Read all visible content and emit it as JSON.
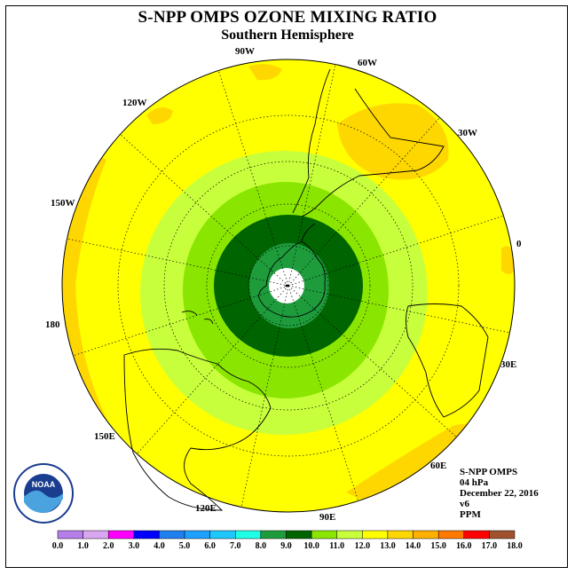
{
  "title": "S-NPP OMPS OZONE MIXING RATIO",
  "subtitle": "Southern Hemisphere",
  "longitude_labels": [
    "90W",
    "60W",
    "30W",
    "0",
    "30E",
    "60E",
    "90E",
    "120E",
    "150E",
    "180",
    "150W",
    "120W"
  ],
  "info": {
    "instrument": "S-NPP OMPS",
    "level": "04 hPa",
    "date": "December 22, 2016",
    "version": "v6",
    "units": "PPM"
  },
  "logo_text": "NOAA",
  "colorbar": {
    "ticks": [
      "0.0",
      "1.0",
      "2.0",
      "3.0",
      "4.0",
      "5.0",
      "6.0",
      "7.0",
      "8.0",
      "9.0",
      "10.0",
      "11.0",
      "12.0",
      "13.0",
      "14.0",
      "15.0",
      "16.0",
      "17.0",
      "18.0"
    ],
    "colors": [
      "#b57ee8",
      "#d9a6f0",
      "#ff00ff",
      "#0000ff",
      "#1e7fef",
      "#1ea0ff",
      "#1ec8ff",
      "#1effe6",
      "#1e9c3c",
      "#006400",
      "#8ae600",
      "#c8ff3c",
      "#ffff00",
      "#ffd700",
      "#ffb000",
      "#ff7800",
      "#ff0000",
      "#a0522d"
    ]
  },
  "map_data": {
    "projection": "south polar stereographic",
    "bands": [
      {
        "range": "9.0-10.0",
        "color": "#006400"
      },
      {
        "range": "8.0-9.0",
        "color": "#1e9c3c"
      },
      {
        "range": "10.0-11.0",
        "color": "#8ae600"
      },
      {
        "range": "11.0-12.0",
        "color": "#c8ff3c"
      },
      {
        "range": "12.0-13.0",
        "color": "#ffff00"
      },
      {
        "range": "13.0-14.0",
        "color": "#ffd700"
      }
    ]
  }
}
